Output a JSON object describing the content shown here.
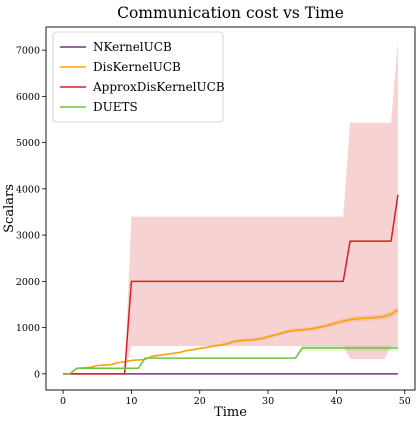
{
  "chart_data": {
    "type": "line",
    "title": "Communication cost vs Time",
    "xlabel": "Time",
    "ylabel": "Scalars",
    "xlim": [
      -2.5,
      51.5
    ],
    "ylim": [
      -350,
      7500
    ],
    "xticks": [
      0,
      10,
      20,
      30,
      40,
      50
    ],
    "yticks": [
      0,
      1000,
      2000,
      3000,
      4000,
      5000,
      6000,
      7000
    ],
    "grid": false,
    "legend_position": "top-left",
    "series": [
      {
        "name": "NKernelUCB",
        "color": "#7b2c8f",
        "x": [
          0,
          49
        ],
        "y": [
          0,
          0
        ],
        "lower": [
          0,
          0
        ],
        "upper": [
          0,
          0
        ]
      },
      {
        "name": "DisKernelUCB",
        "color": "#f5a20a",
        "x": [
          0,
          1,
          2,
          3,
          4,
          5,
          6,
          7,
          8,
          9,
          10,
          11,
          12,
          13,
          14,
          15,
          16,
          17,
          18,
          19,
          20,
          21,
          22,
          23,
          24,
          25,
          26,
          27,
          28,
          29,
          30,
          31,
          32,
          33,
          34,
          35,
          36,
          37,
          38,
          39,
          40,
          41,
          42,
          43,
          44,
          45,
          46,
          47,
          48,
          49
        ],
        "y": [
          0,
          0,
          120,
          130,
          140,
          180,
          190,
          200,
          240,
          260,
          290,
          300,
          310,
          380,
          400,
          420,
          440,
          460,
          500,
          520,
          550,
          570,
          600,
          620,
          650,
          700,
          720,
          730,
          740,
          760,
          800,
          840,
          880,
          920,
          940,
          950,
          970,
          990,
          1020,
          1060,
          1100,
          1140,
          1170,
          1190,
          1200,
          1210,
          1220,
          1240,
          1290,
          1380
        ],
        "lower": [
          0,
          0,
          100,
          110,
          120,
          160,
          170,
          180,
          220,
          240,
          270,
          280,
          290,
          355,
          375,
          395,
          415,
          435,
          470,
          490,
          520,
          540,
          570,
          590,
          615,
          660,
          680,
          690,
          700,
          720,
          760,
          800,
          840,
          875,
          895,
          905,
          925,
          945,
          975,
          1010,
          1045,
          1085,
          1115,
          1130,
          1140,
          1150,
          1160,
          1175,
          1220,
          1300
        ],
        "upper": [
          0,
          0,
          140,
          150,
          160,
          200,
          210,
          220,
          260,
          280,
          310,
          320,
          330,
          405,
          425,
          445,
          465,
          485,
          530,
          550,
          580,
          600,
          630,
          650,
          685,
          740,
          760,
          770,
          780,
          800,
          840,
          880,
          920,
          965,
          985,
          995,
          1015,
          1035,
          1065,
          1110,
          1155,
          1195,
          1225,
          1250,
          1260,
          1270,
          1280,
          1305,
          1360,
          1460
        ]
      },
      {
        "name": "ApproxDisKernelUCB",
        "color": "#d62020",
        "x": [
          0,
          1,
          2,
          3,
          4,
          5,
          6,
          7,
          8,
          9,
          10,
          11,
          12,
          13,
          14,
          15,
          16,
          17,
          18,
          19,
          20,
          21,
          22,
          23,
          24,
          25,
          26,
          27,
          28,
          29,
          30,
          31,
          32,
          33,
          34,
          35,
          36,
          37,
          38,
          39,
          40,
          41,
          42,
          43,
          44,
          45,
          46,
          47,
          48,
          49
        ],
        "y": [
          0,
          0,
          0,
          0,
          0,
          0,
          0,
          0,
          0,
          0,
          2000,
          2000,
          2000,
          2000,
          2000,
          2000,
          2000,
          2000,
          2000,
          2000,
          2000,
          2000,
          2000,
          2000,
          2000,
          2000,
          2000,
          2000,
          2000,
          2000,
          2000,
          2000,
          2000,
          2000,
          2000,
          2000,
          2000,
          2000,
          2000,
          2000,
          2000,
          2000,
          2870,
          2870,
          2870,
          2870,
          2870,
          2870,
          2870,
          3870
        ],
        "lower": [
          0,
          0,
          0,
          0,
          0,
          0,
          0,
          0,
          0,
          0,
          600,
          600,
          600,
          600,
          600,
          600,
          600,
          600,
          600,
          600,
          600,
          600,
          600,
          600,
          600,
          600,
          600,
          600,
          600,
          600,
          600,
          600,
          600,
          600,
          600,
          600,
          600,
          600,
          600,
          600,
          600,
          600,
          320,
          320,
          320,
          320,
          320,
          320,
          600,
          600
        ],
        "upper": [
          0,
          0,
          0,
          0,
          0,
          0,
          0,
          0,
          0,
          0,
          3400,
          3400,
          3400,
          3400,
          3400,
          3400,
          3400,
          3400,
          3400,
          3400,
          3400,
          3400,
          3400,
          3400,
          3400,
          3400,
          3400,
          3400,
          3400,
          3400,
          3400,
          3400,
          3400,
          3400,
          3400,
          3400,
          3400,
          3400,
          3400,
          3400,
          3400,
          3400,
          5430,
          5430,
          5430,
          5430,
          5430,
          5430,
          5430,
          7200
        ]
      },
      {
        "name": "DUETS",
        "color": "#6cc33b",
        "x": [
          0,
          1,
          2,
          3,
          4,
          5,
          6,
          7,
          8,
          9,
          10,
          11,
          12,
          13,
          14,
          15,
          16,
          17,
          18,
          19,
          20,
          21,
          22,
          23,
          24,
          25,
          26,
          27,
          28,
          29,
          30,
          31,
          32,
          33,
          34,
          35,
          36,
          37,
          38,
          39,
          40,
          41,
          42,
          43,
          44,
          45,
          46,
          47,
          48,
          49
        ],
        "y": [
          0,
          0,
          120,
          120,
          120,
          120,
          120,
          120,
          120,
          120,
          120,
          120,
          340,
          340,
          340,
          340,
          340,
          340,
          340,
          340,
          340,
          340,
          340,
          340,
          340,
          340,
          340,
          340,
          340,
          340,
          340,
          340,
          340,
          340,
          340,
          560,
          560,
          560,
          560,
          560,
          560,
          560,
          560,
          560,
          560,
          560,
          560,
          560,
          560,
          560
        ],
        "lower": [
          0,
          0,
          120,
          120,
          120,
          120,
          120,
          120,
          120,
          120,
          120,
          120,
          340,
          340,
          340,
          340,
          340,
          340,
          340,
          340,
          340,
          340,
          340,
          340,
          340,
          340,
          340,
          340,
          340,
          340,
          340,
          340,
          340,
          340,
          340,
          500,
          500,
          500,
          500,
          500,
          500,
          500,
          500,
          500,
          500,
          500,
          500,
          500,
          500,
          500
        ],
        "upper": [
          0,
          0,
          120,
          120,
          120,
          120,
          120,
          120,
          120,
          120,
          120,
          120,
          340,
          340,
          340,
          340,
          340,
          340,
          340,
          340,
          340,
          340,
          340,
          340,
          340,
          340,
          340,
          340,
          340,
          340,
          340,
          340,
          340,
          340,
          340,
          620,
          620,
          620,
          620,
          620,
          620,
          620,
          620,
          620,
          620,
          620,
          620,
          620,
          620,
          620
        ]
      }
    ]
  }
}
